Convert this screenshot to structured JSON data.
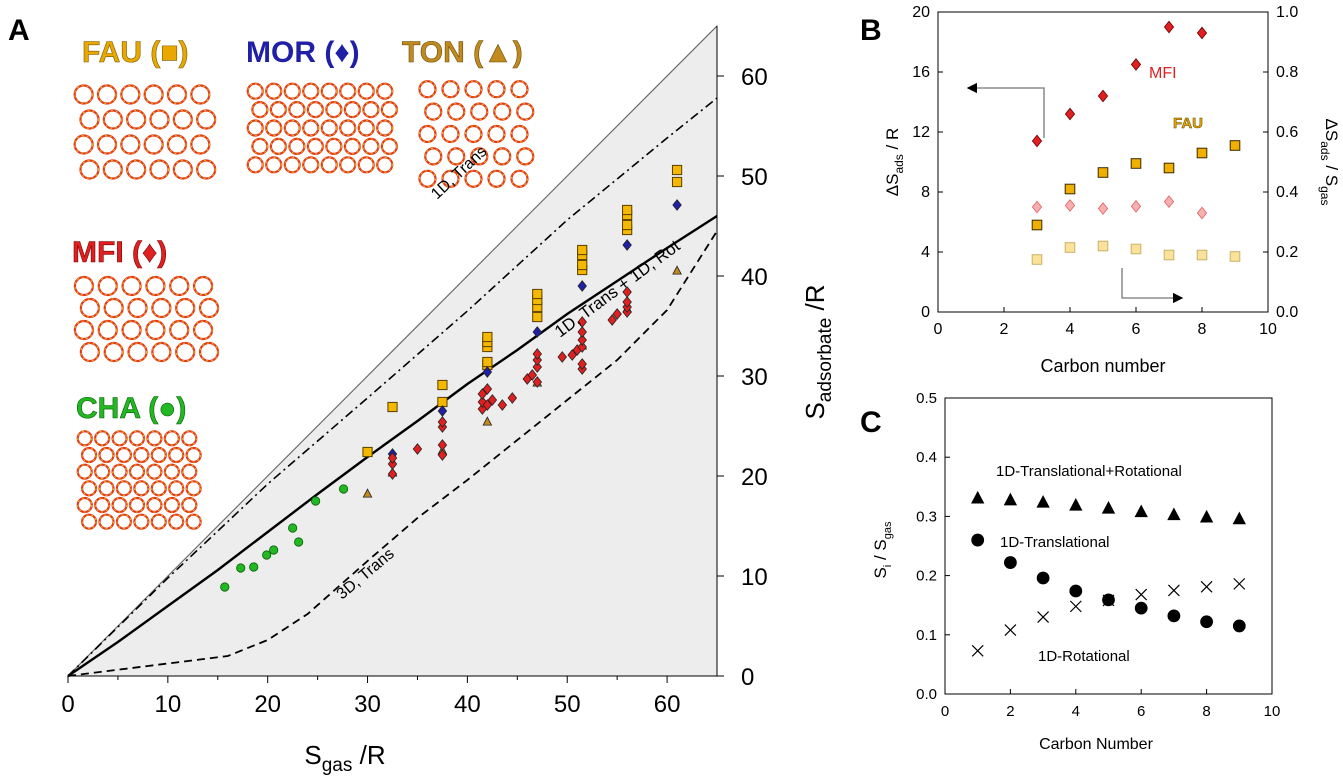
{
  "panels": {
    "A": {
      "letter": "A"
    },
    "B": {
      "letter": "B"
    },
    "C": {
      "letter": "C"
    }
  },
  "zeolites": [
    {
      "id": "fau",
      "label": "FAU (■)",
      "color": "#E8A800"
    },
    {
      "id": "mor",
      "label": "MOR (♦)",
      "color": "#1F1FA8"
    },
    {
      "id": "ton",
      "label": "TON (▲)",
      "color": "#B8860B"
    },
    {
      "id": "mfi",
      "label": "MFI (♦)",
      "color": "#E02020"
    },
    {
      "id": "cha",
      "label": "CHA (●)",
      "color": "#22B822"
    }
  ],
  "framework_colors": {
    "O": "#E23B1B",
    "Si": "#F0B51C"
  },
  "chart_data": [
    {
      "panel": "A",
      "type": "scatter",
      "xlabel": "S",
      "xlabel_sub": "gas",
      "xlabel_tail": " /R",
      "ylabel": "S",
      "ylabel_sub": "adsorbate",
      "ylabel_tail": " /R",
      "xlim": [
        0,
        65
      ],
      "ylim": [
        0,
        65
      ],
      "xticks": [
        0,
        10,
        20,
        30,
        40,
        50,
        60
      ],
      "yticks": [
        0,
        10,
        20,
        30,
        40,
        50,
        60
      ],
      "region_fill": "#EDEDED",
      "reference_lines": [
        {
          "name": "S_adsorbate = S_gas",
          "style": "thin",
          "points": [
            [
              0,
              0
            ],
            [
              65,
              65
            ]
          ]
        },
        {
          "label": "1D, Trans",
          "style": "dash-dot",
          "points": [
            [
              0,
              0
            ],
            [
              5,
              4.9
            ],
            [
              10,
              9.8
            ],
            [
              15,
              14.5
            ],
            [
              20,
              19.2
            ],
            [
              30,
              27.8
            ],
            [
              40,
              36.5
            ],
            [
              50,
              45.6
            ],
            [
              60,
              53.8
            ],
            [
              65,
              57.8
            ]
          ]
        },
        {
          "label": "1D, Trans + 1D, Rot",
          "style": "solid",
          "points": [
            [
              0,
              0
            ],
            [
              5,
              3.4
            ],
            [
              10,
              7.0
            ],
            [
              15,
              10.6
            ],
            [
              20,
              14.4
            ],
            [
              25,
              18.2
            ],
            [
              30,
              21.9
            ],
            [
              35,
              25.5
            ],
            [
              40,
              29.2
            ],
            [
              45,
              32.6
            ],
            [
              50,
              36.2
            ],
            [
              55,
              39.5
            ],
            [
              60,
              42.8
            ],
            [
              65,
              46
            ]
          ]
        },
        {
          "label": "3D, Trans",
          "style": "dashed",
          "points": [
            [
              0,
              0
            ],
            [
              8,
              1.0
            ],
            [
              16,
              2.0
            ],
            [
              20,
              3.6
            ],
            [
              24,
              6.2
            ],
            [
              30,
              11.5
            ],
            [
              35,
              15.8
            ],
            [
              40,
              19.6
            ],
            [
              45,
              23.6
            ],
            [
              50,
              27.6
            ],
            [
              55,
              31.6
            ],
            [
              60,
              36.6
            ],
            [
              65,
              44.5
            ]
          ]
        }
      ],
      "series": [
        {
          "name": "FAU",
          "marker": "square",
          "color": "#F5B800",
          "points": [
            [
              30,
              22.4
            ],
            [
              32.5,
              26.9
            ],
            [
              37.5,
              27.4
            ],
            [
              37.5,
              29.1
            ],
            [
              42,
              31.1
            ],
            [
              42,
              31.4
            ],
            [
              42,
              32.9
            ],
            [
              42,
              33.4
            ],
            [
              42,
              33.9
            ],
            [
              47,
              35.9
            ],
            [
              47,
              36.9
            ],
            [
              47,
              37.6
            ],
            [
              47,
              38.2
            ],
            [
              51.5,
              40.6
            ],
            [
              51.5,
              41.1
            ],
            [
              51.5,
              42.1
            ],
            [
              51.5,
              42.6
            ],
            [
              56,
              44.6
            ],
            [
              56,
              45.1
            ],
            [
              56,
              46.1
            ],
            [
              56,
              46.6
            ],
            [
              61,
              49.4
            ],
            [
              61,
              50.6
            ]
          ]
        },
        {
          "name": "MOR",
          "marker": "diamond",
          "color": "#1F1FA8",
          "points": [
            [
              32.5,
              22.2
            ],
            [
              37.5,
              26.5
            ],
            [
              42,
              30.4
            ],
            [
              47,
              34.4
            ],
            [
              51.5,
              39.0
            ],
            [
              56,
              43.1
            ],
            [
              61,
              47.1
            ]
          ]
        },
        {
          "name": "TON",
          "marker": "triangle",
          "color": "#C08A1E",
          "points": [
            [
              30,
              18.2
            ],
            [
              32.5,
              20.3
            ],
            [
              37.5,
              22.5
            ],
            [
              42,
              25.4
            ],
            [
              47,
              29.3
            ],
            [
              51.5,
              33.0
            ],
            [
              56,
              36.7
            ],
            [
              61,
              40.5
            ]
          ]
        },
        {
          "name": "MFI",
          "marker": "diamond",
          "color": "#E02020",
          "points": [
            [
              32.5,
              20.2
            ],
            [
              32.5,
              21.2
            ],
            [
              32.5,
              21.8
            ],
            [
              35,
              22.7
            ],
            [
              37.5,
              22.1
            ],
            [
              37.5,
              23.1
            ],
            [
              37.5,
              24.9
            ],
            [
              37.5,
              25.4
            ],
            [
              41.5,
              26.7
            ],
            [
              41.5,
              27.4
            ],
            [
              41.5,
              28.2
            ],
            [
              42,
              28.7
            ],
            [
              42,
              27.1
            ],
            [
              42.5,
              27.6
            ],
            [
              43.5,
              27.1
            ],
            [
              44.5,
              27.8
            ],
            [
              46,
              29.7
            ],
            [
              46.5,
              30.1
            ],
            [
              47,
              29.4
            ],
            [
              47,
              30.9
            ],
            [
              47,
              31.6
            ],
            [
              47,
              32.2
            ],
            [
              49.5,
              31.9
            ],
            [
              50.5,
              32.1
            ],
            [
              51,
              32.6
            ],
            [
              51.5,
              30.7
            ],
            [
              51.5,
              31.2
            ],
            [
              51.5,
              32.9
            ],
            [
              51.5,
              33.6
            ],
            [
              51.5,
              34.4
            ],
            [
              51.5,
              35.4
            ],
            [
              54.5,
              35.6
            ],
            [
              55,
              36.2
            ],
            [
              56,
              36.4
            ],
            [
              56,
              36.9
            ],
            [
              56,
              37.4
            ],
            [
              56,
              38.4
            ]
          ]
        },
        {
          "name": "CHA",
          "marker": "circle",
          "color": "#22B822",
          "points": [
            [
              15.7,
              8.9
            ],
            [
              17.3,
              10.8
            ],
            [
              18.6,
              10.9
            ],
            [
              19.9,
              12.1
            ],
            [
              20.6,
              12.6
            ],
            [
              22.5,
              14.8
            ],
            [
              23.1,
              13.4
            ],
            [
              24.8,
              17.5
            ],
            [
              27.6,
              18.7
            ]
          ]
        }
      ]
    },
    {
      "panel": "B",
      "type": "scatter",
      "xlabel": "Carbon number",
      "ylabel_left": "ΔS",
      "ylabel_left_sub": "ads",
      "ylabel_left_tail": " / R",
      "ylabel_right": "ΔS",
      "ylabel_right_sub": "ads",
      "ylabel_right_mid": " / S",
      "ylabel_right_sub2": "gas",
      "xlim": [
        0,
        10
      ],
      "ylim_left": [
        0,
        20
      ],
      "ylim_right": [
        0,
        1.0
      ],
      "xticks": [
        0,
        2,
        4,
        6,
        8,
        10
      ],
      "yticks_left": [
        0,
        4,
        8,
        12,
        16,
        20
      ],
      "yticks_right": [
        "0.0",
        "0.2",
        "0.4",
        "0.6",
        "0.8",
        "1.0"
      ],
      "annotations": [
        {
          "text": "MFI",
          "color": "#E02020"
        },
        {
          "text": "FAU",
          "color": "#E8A800"
        }
      ],
      "series": [
        {
          "name": "MFI",
          "axis": "left",
          "marker": "diamond",
          "color": "#E02020",
          "points": [
            [
              3,
              11.4
            ],
            [
              4,
              13.2
            ],
            [
              5,
              14.4
            ],
            [
              6,
              16.5
            ],
            [
              7,
              19.0
            ],
            [
              8,
              18.6
            ]
          ]
        },
        {
          "name": "FAU",
          "axis": "left",
          "marker": "square",
          "color": "#F0B000",
          "points": [
            [
              3,
              5.8
            ],
            [
              4,
              8.2
            ],
            [
              5,
              9.3
            ],
            [
              6,
              9.9
            ],
            [
              7,
              9.6
            ],
            [
              8,
              10.6
            ],
            [
              9,
              11.1
            ]
          ]
        },
        {
          "name": "MFI",
          "axis": "right",
          "marker": "diamond",
          "color": "#F7B0B0",
          "points": [
            [
              3,
              0.35
            ],
            [
              4,
              0.355
            ],
            [
              5,
              0.345
            ],
            [
              6,
              0.352
            ],
            [
              7,
              0.368
            ],
            [
              8,
              0.33
            ]
          ]
        },
        {
          "name": "FAU",
          "axis": "right",
          "marker": "square",
          "color": "#FBE29A",
          "points": [
            [
              3,
              0.175
            ],
            [
              4,
              0.215
            ],
            [
              5,
              0.22
            ],
            [
              6,
              0.21
            ],
            [
              7,
              0.19
            ],
            [
              8,
              0.19
            ],
            [
              9,
              0.185
            ]
          ]
        }
      ]
    },
    {
      "panel": "C",
      "type": "scatter",
      "xlabel": "Carbon Number",
      "ylabel": "S",
      "ylabel_sub": "i",
      "ylabel_mid": " / S",
      "ylabel_sub2": "gas",
      "xlim": [
        0,
        10
      ],
      "ylim": [
        0,
        0.5
      ],
      "xticks": [
        0,
        2,
        4,
        6,
        8,
        10
      ],
      "yticks": [
        "0.0",
        "0.1",
        "0.2",
        "0.3",
        "0.4",
        "0.5"
      ],
      "series": [
        {
          "name": "1D-Translational+Rotational",
          "marker": "triangle",
          "color": "#000000",
          "points": [
            [
              1,
              0.33
            ],
            [
              2,
              0.327
            ],
            [
              3,
              0.323
            ],
            [
              4,
              0.318
            ],
            [
              5,
              0.313
            ],
            [
              6,
              0.307
            ],
            [
              7,
              0.302
            ],
            [
              8,
              0.298
            ],
            [
              9,
              0.295
            ]
          ]
        },
        {
          "name": "1D-Translational",
          "marker": "circle",
          "color": "#000000",
          "points": [
            [
              1,
              0.26
            ],
            [
              2,
              0.222
            ],
            [
              3,
              0.196
            ],
            [
              4,
              0.174
            ],
            [
              5,
              0.159
            ],
            [
              6,
              0.145
            ],
            [
              7,
              0.132
            ],
            [
              8,
              0.122
            ],
            [
              9,
              0.115
            ]
          ]
        },
        {
          "name": "1D-Rotational",
          "marker": "cross",
          "color": "#000000",
          "points": [
            [
              1,
              0.073
            ],
            [
              2,
              0.108
            ],
            [
              3,
              0.13
            ],
            [
              4,
              0.148
            ],
            [
              5,
              0.158
            ],
            [
              6,
              0.168
            ],
            [
              7,
              0.175
            ],
            [
              8,
              0.181
            ],
            [
              9,
              0.186
            ]
          ]
        }
      ]
    }
  ]
}
